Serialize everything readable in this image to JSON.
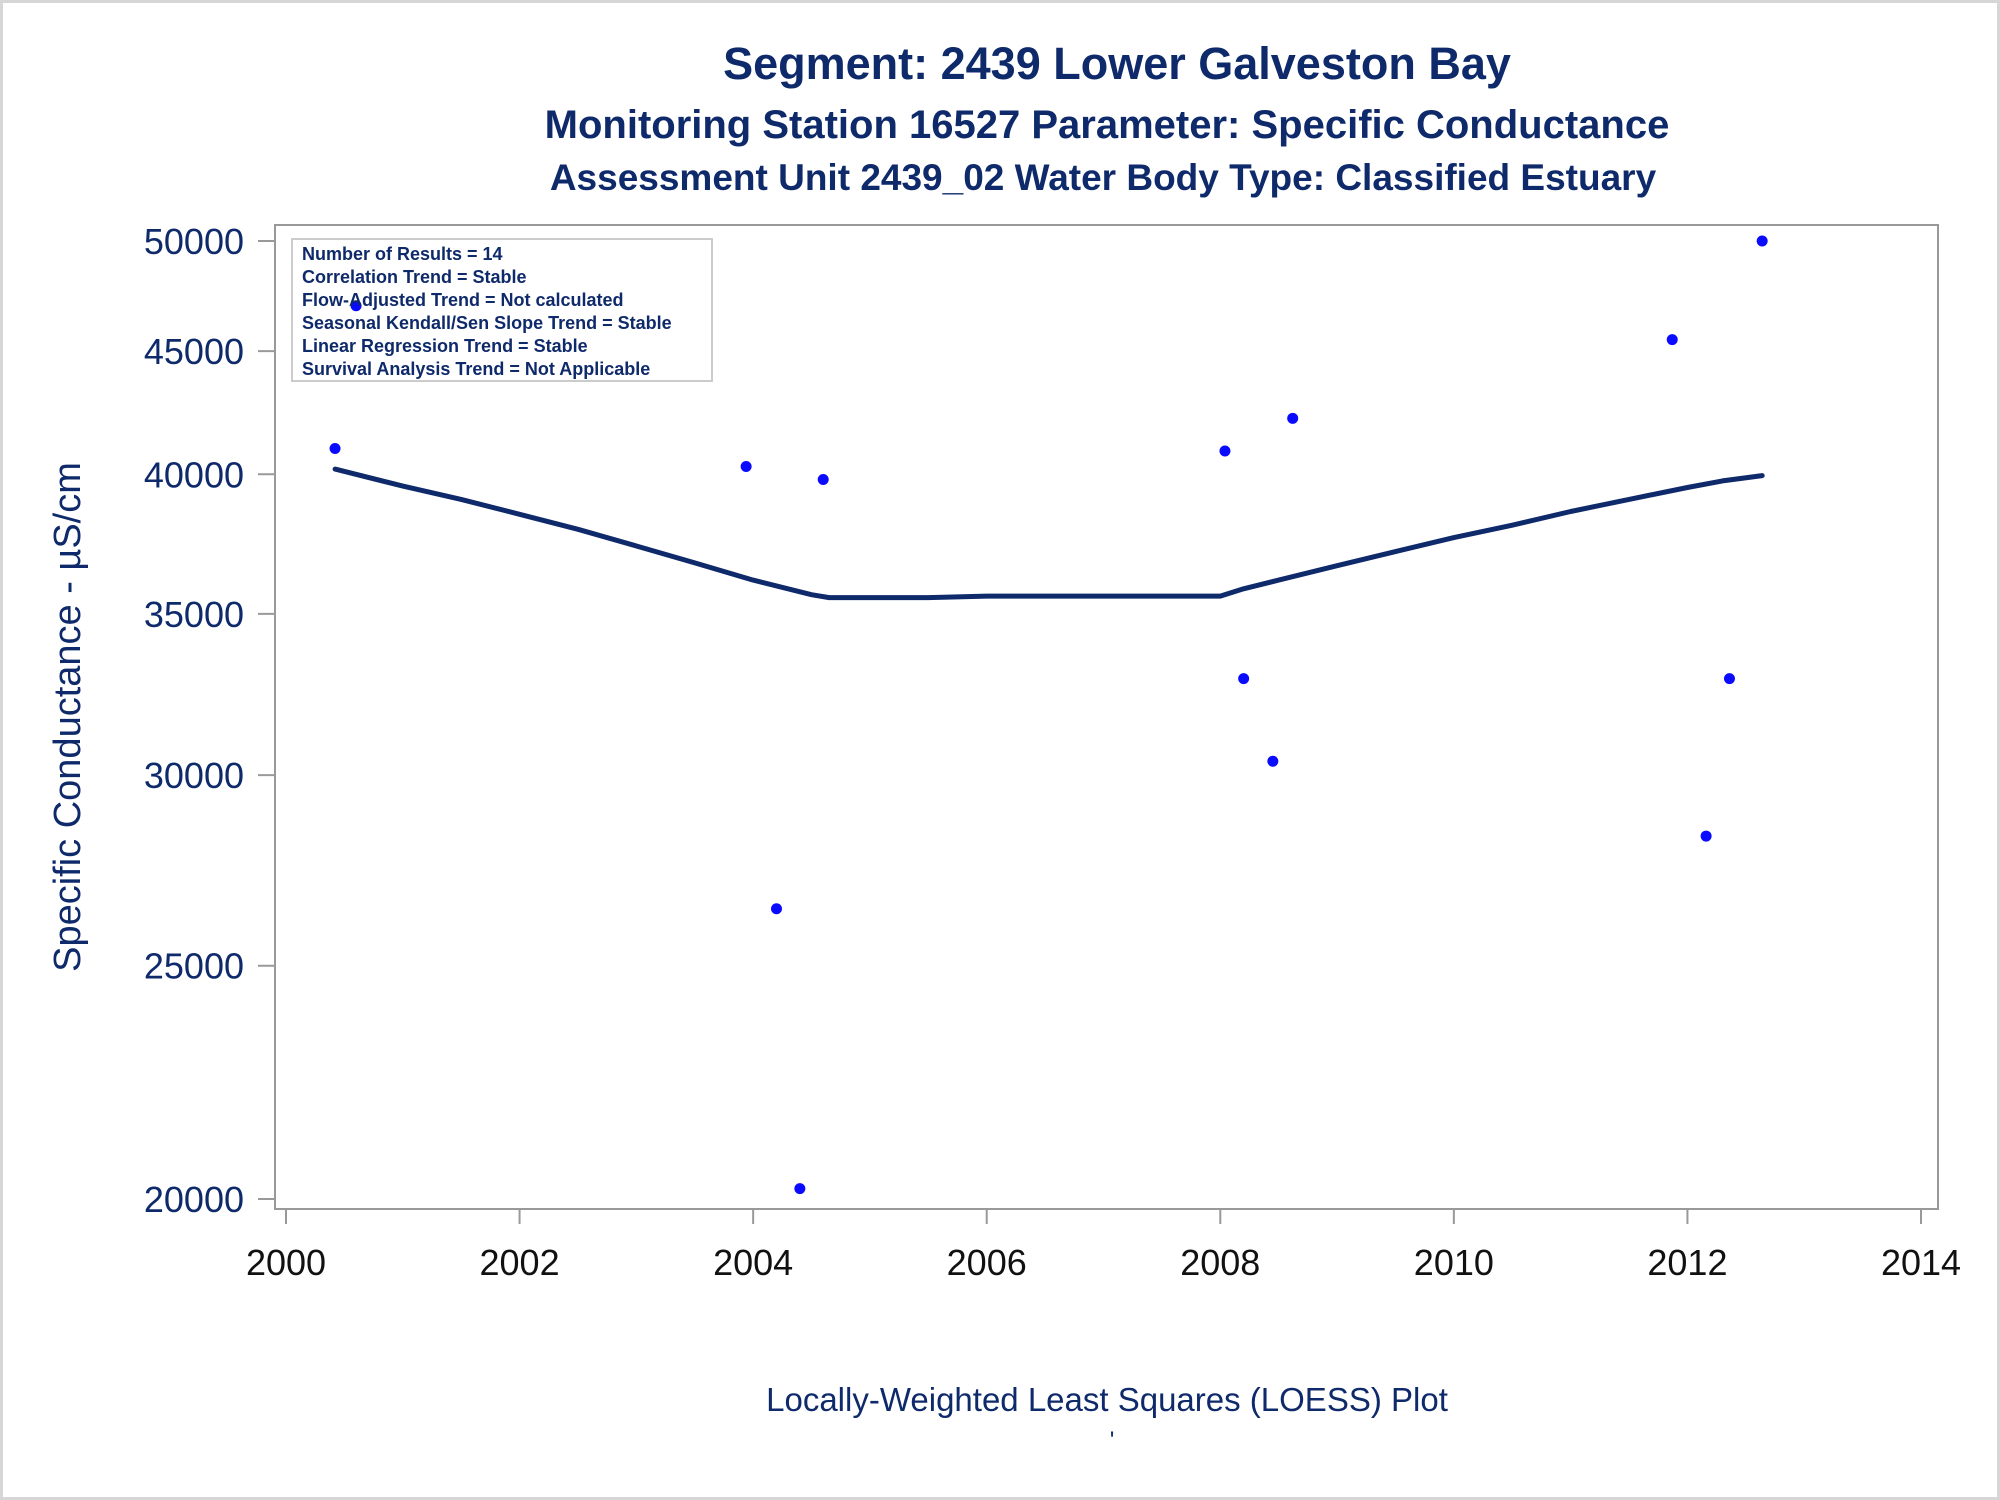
{
  "chart_data": {
    "type": "scatter",
    "title": "Segment: 2439  Lower Galveston Bay",
    "subtitle": "Monitoring Station 16527 Parameter: Specific Conductance",
    "subtitle2": "Assessment Unit 2439_02   Water Body Type: Classified Estuary",
    "xlabel": "Locally-Weighted Least Squares (LOESS) Plot",
    "footnote": "'",
    "ylabel": "Specific Conductance -  µS/cm",
    "y_scale": "log",
    "xlim": [
      2000,
      2014
    ],
    "ylim": [
      20000,
      50000
    ],
    "x_ticks": [
      2000,
      2002,
      2004,
      2006,
      2008,
      2010,
      2012,
      2014
    ],
    "y_ticks": [
      20000,
      25000,
      30000,
      35000,
      40000,
      45000,
      50000
    ],
    "grid": false,
    "legend_position": "top-left",
    "stats_box": [
      "Number of Results = 14",
      "Correlation Trend = Stable",
      "Flow-Adjusted Trend = Not calculated",
      "Seasonal Kendall/Sen Slope Trend = Stable",
      "Linear Regression Trend = Stable",
      "Survival Analysis Trend = Not Applicable"
    ],
    "points": [
      {
        "x": 2000.42,
        "y": 41000
      },
      {
        "x": 2000.6,
        "y": 47000
      },
      {
        "x": 2003.94,
        "y": 40300
      },
      {
        "x": 2004.2,
        "y": 26400
      },
      {
        "x": 2004.4,
        "y": 20200
      },
      {
        "x": 2004.6,
        "y": 39800
      },
      {
        "x": 2008.04,
        "y": 40900
      },
      {
        "x": 2008.2,
        "y": 32900
      },
      {
        "x": 2008.45,
        "y": 30400
      },
      {
        "x": 2008.62,
        "y": 42200
      },
      {
        "x": 2011.87,
        "y": 45500
      },
      {
        "x": 2012.16,
        "y": 28300
      },
      {
        "x": 2012.36,
        "y": 32900
      },
      {
        "x": 2012.64,
        "y": 50000
      }
    ],
    "loess_line": {
      "x": [
        2000.42,
        2001.0,
        2001.5,
        2002.0,
        2002.5,
        2003.0,
        2003.5,
        2004.0,
        2004.5,
        2004.65,
        2005.0,
        2005.5,
        2006.0,
        2007.0,
        2007.7,
        2008.0,
        2008.2,
        2008.5,
        2009.0,
        2009.5,
        2010.0,
        2010.5,
        2011.0,
        2011.5,
        2012.0,
        2012.3,
        2012.64
      ],
      "y": [
        40200,
        39550,
        39050,
        38500,
        37950,
        37350,
        36750,
        36150,
        35650,
        35550,
        35550,
        35550,
        35600,
        35600,
        35600,
        35600,
        35850,
        36150,
        36650,
        37150,
        37650,
        38100,
        38600,
        39050,
        39500,
        39750,
        39950
      ]
    },
    "colors": {
      "title": "#0f2a6b",
      "points": "#0a0aff",
      "line": "#0f2a6b",
      "axis": "#999999",
      "legend_border": "#cccccc"
    }
  }
}
